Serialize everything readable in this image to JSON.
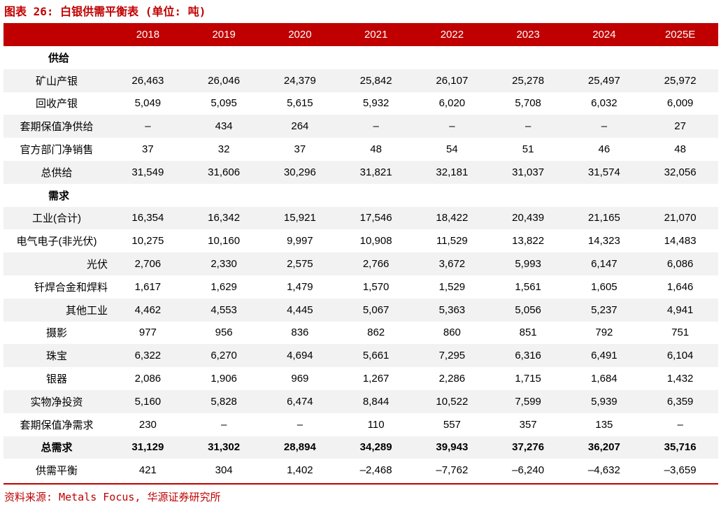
{
  "title": "图表 26: 白银供需平衡表 (单位: 吨)",
  "years": [
    "2018",
    "2019",
    "2020",
    "2021",
    "2022",
    "2023",
    "2024",
    "2025E"
  ],
  "rows": [
    {
      "label": "供给",
      "values": [
        "",
        "",
        "",
        "",
        "",
        "",
        "",
        ""
      ]
    },
    {
      "label": "矿山产银",
      "values": [
        "26,463",
        "26,046",
        "24,379",
        "25,842",
        "26,107",
        "25,278",
        "25,497",
        "25,972"
      ]
    },
    {
      "label": "回收产银",
      "values": [
        "5,049",
        "5,095",
        "5,615",
        "5,932",
        "6,020",
        "5,708",
        "6,032",
        "6,009"
      ]
    },
    {
      "label": "套期保值净供给",
      "values": [
        "–",
        "434",
        "264",
        "–",
        "–",
        "–",
        "–",
        "27"
      ]
    },
    {
      "label": "官方部门净销售",
      "values": [
        "37",
        "32",
        "37",
        "48",
        "54",
        "51",
        "46",
        "48"
      ]
    },
    {
      "label": "总供给",
      "values": [
        "31,549",
        "31,606",
        "30,296",
        "31,821",
        "32,181",
        "31,037",
        "31,574",
        "32,056"
      ]
    },
    {
      "label": "需求",
      "values": [
        "",
        "",
        "",
        "",
        "",
        "",
        "",
        ""
      ]
    },
    {
      "label": "工业(合计)",
      "values": [
        "16,354",
        "16,342",
        "15,921",
        "17,546",
        "18,422",
        "20,439",
        "21,165",
        "21,070"
      ]
    },
    {
      "label": "电气电子(非光伏)",
      "values": [
        "10,275",
        "10,160",
        "9,997",
        "10,908",
        "11,529",
        "13,822",
        "14,323",
        "14,483"
      ]
    },
    {
      "label": "光伏",
      "values": [
        "2,706",
        "2,330",
        "2,575",
        "2,766",
        "3,672",
        "5,993",
        "6,147",
        "6,086"
      ]
    },
    {
      "label": "钎焊合金和焊料",
      "values": [
        "1,617",
        "1,629",
        "1,479",
        "1,570",
        "1,529",
        "1,561",
        "1,605",
        "1,646"
      ]
    },
    {
      "label": "其他工业",
      "values": [
        "4,462",
        "4,553",
        "4,445",
        "5,067",
        "5,363",
        "5,056",
        "5,237",
        "4,941"
      ]
    },
    {
      "label": "摄影",
      "values": [
        "977",
        "956",
        "836",
        "862",
        "860",
        "851",
        "792",
        "751"
      ]
    },
    {
      "label": "珠宝",
      "values": [
        "6,322",
        "6,270",
        "4,694",
        "5,661",
        "7,295",
        "6,316",
        "6,491",
        "6,104"
      ]
    },
    {
      "label": "银器",
      "values": [
        "2,086",
        "1,906",
        "969",
        "1,267",
        "2,286",
        "1,715",
        "1,684",
        "1,432"
      ]
    },
    {
      "label": "实物净投资",
      "values": [
        "5,160",
        "5,828",
        "6,474",
        "8,844",
        "10,522",
        "7,599",
        "5,939",
        "6,359"
      ]
    },
    {
      "label": "套期保值净需求",
      "values": [
        "230",
        "–",
        "–",
        "110",
        "557",
        "357",
        "135",
        "–"
      ]
    },
    {
      "label": "总需求",
      "values": [
        "31,129",
        "31,302",
        "28,894",
        "34,289",
        "39,943",
        "37,276",
        "36,207",
        "35,716"
      ]
    },
    {
      "label": "供需平衡",
      "values": [
        "421",
        "304",
        "1,402",
        "–2,468",
        "–7,762",
        "–6,240",
        "–4,632",
        "–3,659"
      ]
    }
  ],
  "source": "资料来源: Metals Focus, 华源证券研究所"
}
